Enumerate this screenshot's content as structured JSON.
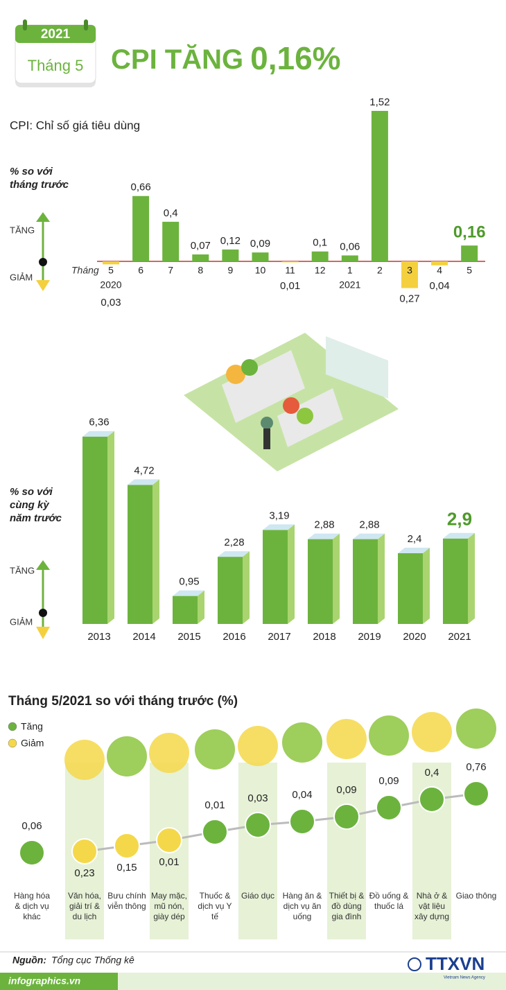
{
  "header": {
    "year": "2021",
    "month": "Tháng 5",
    "title": "CPI TĂNG",
    "title_value": "0,16%"
  },
  "chart_data": [
    {
      "type": "bar",
      "subtitle": "CPI: Chỉ số giá tiêu dùng",
      "y_label": "% so với tháng trước",
      "up_label": "TĂNG",
      "down_label": "GIẢM",
      "x_label": "Tháng",
      "categories": [
        "5",
        "6",
        "7",
        "8",
        "9",
        "10",
        "11",
        "12",
        "1",
        "2",
        "3",
        "4",
        "5"
      ],
      "years": [
        "2020",
        null,
        null,
        null,
        null,
        null,
        null,
        null,
        "2021",
        null,
        null,
        null,
        null
      ],
      "values": [
        -0.03,
        0.66,
        0.4,
        0.07,
        0.12,
        0.09,
        -0.01,
        0.1,
        0.06,
        1.52,
        -0.27,
        -0.04,
        0.16
      ],
      "value_labels": [
        "0,03",
        "0,66",
        "0,4",
        "0,07",
        "0,12",
        "0,09",
        "0,01",
        "0,1",
        "0,06",
        "1,52",
        "0,27",
        "0,04",
        "0,16"
      ],
      "colors": {
        "up": "#6cb33e",
        "down": "#f4d03f"
      }
    },
    {
      "type": "bar3d",
      "y_label": "% so với cùng kỳ năm trước",
      "up_label": "TĂNG",
      "down_label": "GIẢM",
      "categories": [
        "2013",
        "2014",
        "2015",
        "2016",
        "2017",
        "2018",
        "2019",
        "2020",
        "2021"
      ],
      "values": [
        6.36,
        4.72,
        0.95,
        2.28,
        3.19,
        2.88,
        2.88,
        2.4,
        2.9
      ],
      "value_labels": [
        "6,36",
        "4,72",
        "0,95",
        "2,28",
        "3,19",
        "2,88",
        "2,88",
        "2,4",
        "2,9"
      ],
      "color": "#6cb33e"
    },
    {
      "type": "dot",
      "title": "Tháng 5/2021 so với tháng trước (%)",
      "legend": [
        {
          "name": "Tăng",
          "color": "#6cb33e"
        },
        {
          "name": "Giảm",
          "color": "#f4d84a"
        }
      ],
      "categories": [
        "Hàng hóa & dịch vụ khác",
        "Văn hóa, giải trí & du lịch",
        "Bưu chính viễn thông",
        "May mặc, mũ nón, giày dép",
        "Thuốc & dịch vụ Y tế",
        "Giáo dục",
        "Hàng ăn & dịch vụ ăn uống",
        "Thiết bị & đồ dùng gia đình",
        "Đồ uống & thuốc lá",
        "Nhà ở & vật liệu xây dựng",
        "Giao thông"
      ],
      "values": [
        0.06,
        -0.23,
        -0.15,
        -0.01,
        0.01,
        0.03,
        0.04,
        0.09,
        0.09,
        0.4,
        0.76
      ],
      "value_labels": [
        "0,06",
        "0,23",
        "0,15",
        "0,01",
        "0,01",
        "0,03",
        "0,04",
        "0,09",
        "0,09",
        "0,4",
        "0,76"
      ]
    }
  ],
  "source": {
    "label": "Nguồn:",
    "text": "Tổng cục Thống kê"
  },
  "footer": {
    "site": "infographics.vn",
    "logo": "TTXVN",
    "agency": "Vietnam News Agency"
  }
}
